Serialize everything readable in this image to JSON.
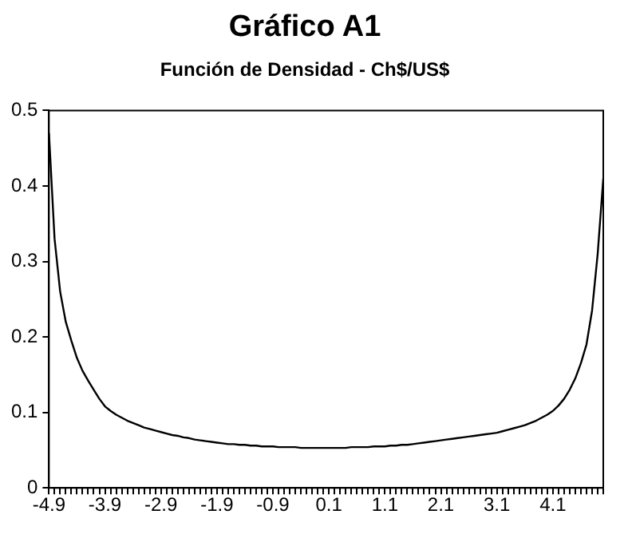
{
  "chart_data": {
    "type": "line",
    "title": "Gráfico A1",
    "subtitle": "Función de Densidad - Ch$/US$",
    "categories": [
      "-4.9",
      null,
      null,
      null,
      null,
      null,
      null,
      null,
      null,
      null,
      "-3.9",
      null,
      null,
      null,
      null,
      null,
      null,
      null,
      null,
      null,
      "-2.9",
      null,
      null,
      null,
      null,
      null,
      null,
      null,
      null,
      null,
      "-1.9",
      null,
      null,
      null,
      null,
      null,
      null,
      null,
      null,
      null,
      "-0.9",
      null,
      null,
      null,
      null,
      null,
      null,
      null,
      null,
      null,
      "0.1",
      null,
      null,
      null,
      null,
      null,
      null,
      null,
      null,
      null,
      "1.1",
      null,
      null,
      null,
      null,
      null,
      null,
      null,
      null,
      null,
      "2.1",
      null,
      null,
      null,
      null,
      null,
      null,
      null,
      null,
      null,
      "3.1",
      null,
      null,
      null,
      null,
      null,
      null,
      null,
      null,
      null,
      "4.1",
      null,
      null,
      null,
      null,
      null,
      null,
      null,
      null,
      null
    ],
    "series": [
      {
        "color": "#000000",
        "values": [
          0.47,
          0.33,
          0.26,
          0.22,
          0.195,
          0.172,
          0.155,
          0.142,
          0.13,
          0.118,
          0.108,
          0.102,
          0.097,
          0.093,
          0.089,
          0.086,
          0.083,
          0.08,
          0.078,
          0.076,
          0.074,
          0.072,
          0.07,
          0.069,
          0.067,
          0.066,
          0.064,
          0.063,
          0.062,
          0.061,
          0.06,
          0.059,
          0.058,
          0.058,
          0.057,
          0.057,
          0.056,
          0.056,
          0.055,
          0.055,
          0.055,
          0.054,
          0.054,
          0.054,
          0.054,
          0.053,
          0.053,
          0.053,
          0.053,
          0.053,
          0.053,
          0.053,
          0.053,
          0.053,
          0.054,
          0.054,
          0.054,
          0.054,
          0.055,
          0.055,
          0.055,
          0.056,
          0.056,
          0.057,
          0.057,
          0.058,
          0.059,
          0.06,
          0.061,
          0.062,
          0.063,
          0.064,
          0.065,
          0.066,
          0.067,
          0.068,
          0.069,
          0.07,
          0.071,
          0.072,
          0.073,
          0.075,
          0.077,
          0.079,
          0.081,
          0.083,
          0.086,
          0.089,
          0.093,
          0.097,
          0.102,
          0.109,
          0.118,
          0.13,
          0.145,
          0.165,
          0.19,
          0.235,
          0.31,
          0.41
        ]
      }
    ],
    "ylim": [
      0,
      0.5
    ],
    "yticks": [
      0,
      0.1,
      0.2,
      0.3,
      0.4,
      0.5
    ],
    "grid": false,
    "legend": false,
    "marker": "none",
    "line_style": "solid"
  }
}
